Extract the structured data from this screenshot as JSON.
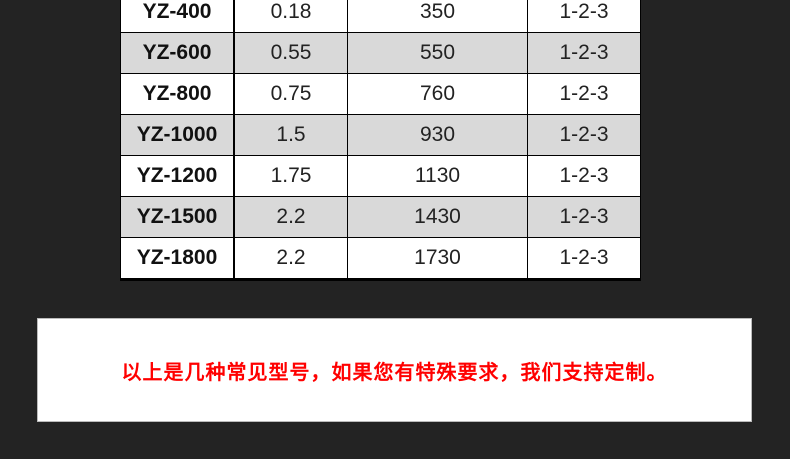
{
  "table": {
    "rows": [
      [
        "YZ-400",
        "0.18",
        "350",
        "1-2-3"
      ],
      [
        "YZ-600",
        "0.55",
        "550",
        "1-2-3"
      ],
      [
        "YZ-800",
        "0.75",
        "760",
        "1-2-3"
      ],
      [
        "YZ-1000",
        "1.5",
        "930",
        "1-2-3"
      ],
      [
        "YZ-1200",
        "1.75",
        "1130",
        "1-2-3"
      ],
      [
        "YZ-1500",
        "2.2",
        "1430",
        "1-2-3"
      ],
      [
        "YZ-1800",
        "2.2",
        "1730",
        "1-2-3"
      ]
    ]
  },
  "note": {
    "text": "以上是几种常见型号，如果您有特殊要求，我们支持定制。",
    "color": "#ff0000"
  }
}
